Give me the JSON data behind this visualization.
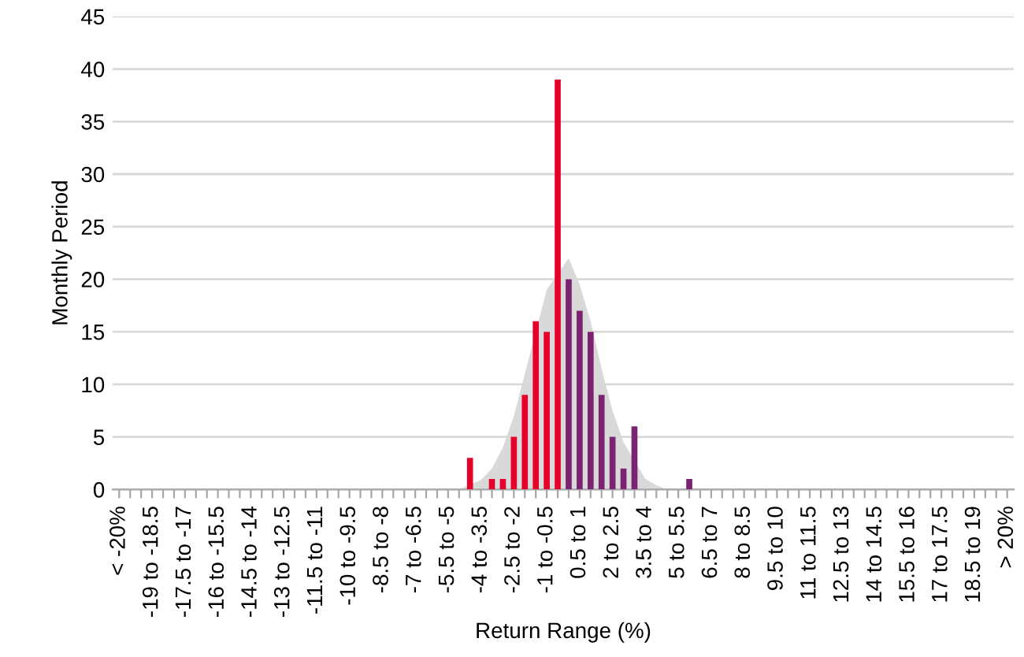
{
  "chart_data": {
    "type": "bar",
    "xlabel": "Return Range (%)",
    "ylabel": "Monthly Period",
    "categories": [
      "< -20%",
      null,
      null,
      "-19 to -18.5",
      null,
      null,
      "-17.5 to -17",
      null,
      null,
      "-16 to -15.5",
      null,
      null,
      "-14.5 to -14",
      null,
      null,
      "-13 to -12.5",
      null,
      null,
      "-11.5 to -11",
      null,
      null,
      "-10 to -9.5",
      null,
      null,
      "-8.5 to -8",
      null,
      null,
      "-7 to -6.5",
      null,
      null,
      "-5.5 to -5",
      null,
      null,
      "-4 to -3.5",
      null,
      null,
      "-2.5 to -2",
      null,
      null,
      "-1 to -0.5",
      null,
      null,
      "0.5 to 1",
      null,
      null,
      "2 to 2.5",
      null,
      null,
      "3.5 to 4",
      null,
      null,
      "5 to 5.5",
      null,
      null,
      "6.5 to 7",
      null,
      null,
      "8 to 8.5",
      null,
      null,
      "9.5 to 10",
      null,
      null,
      "11 to 11.5",
      null,
      null,
      "12.5 to 13",
      null,
      null,
      "14 to 14.5",
      null,
      null,
      "15.5 to 16",
      null,
      null,
      "17 to 17.5",
      null,
      null,
      "18.5 to 19",
      null,
      null,
      "> 20%"
    ],
    "series": [
      {
        "type": "area",
        "color": "#d9d9d9",
        "values": [
          0,
          0,
          0,
          0,
          0,
          0,
          0,
          0,
          0,
          0,
          0,
          0,
          0,
          0,
          0,
          0,
          0,
          0,
          0,
          0,
          0,
          0,
          0,
          0,
          0,
          0,
          0,
          0,
          0,
          0,
          0,
          0,
          null,
          0.9,
          2,
          4,
          7,
          11,
          null,
          19,
          null,
          22,
          19.5,
          16,
          11.5,
          7.5,
          4.5,
          null,
          1,
          0.4,
          0,
          0,
          0,
          0,
          0,
          0,
          0,
          0,
          0,
          0,
          0,
          0,
          0,
          0,
          0,
          0,
          0,
          0,
          0,
          0,
          0,
          0,
          0,
          0,
          0,
          0,
          0,
          0,
          0,
          0,
          0,
          0
        ]
      },
      {
        "color": "#e4002b",
        "values": [
          0,
          0,
          0,
          0,
          0,
          0,
          0,
          0,
          0,
          0,
          0,
          0,
          0,
          0,
          0,
          0,
          0,
          0,
          0,
          0,
          0,
          0,
          0,
          0,
          0,
          0,
          0,
          0,
          0,
          0,
          0,
          0,
          3,
          0,
          1,
          1,
          5,
          9,
          16,
          15,
          39,
          null,
          null,
          null,
          null,
          null,
          null,
          null,
          null,
          null,
          null,
          null,
          null,
          null,
          null,
          null,
          null,
          null,
          null,
          null,
          null,
          null,
          null,
          null,
          null,
          null,
          null,
          null,
          null,
          null,
          null,
          null,
          null,
          null,
          null,
          null,
          null,
          null,
          null,
          null,
          null,
          null
        ]
      },
      {
        "color": "#7b2270",
        "values": [
          null,
          null,
          null,
          null,
          null,
          null,
          null,
          null,
          null,
          null,
          null,
          null,
          null,
          null,
          null,
          null,
          null,
          null,
          null,
          null,
          null,
          null,
          null,
          null,
          null,
          null,
          null,
          null,
          null,
          null,
          null,
          null,
          null,
          null,
          null,
          null,
          null,
          null,
          null,
          null,
          null,
          20,
          17,
          15,
          9,
          5,
          2,
          6,
          0,
          0,
          0,
          0,
          1,
          0,
          0,
          0,
          0,
          0,
          0,
          0,
          0,
          0,
          0,
          0,
          0,
          0,
          0,
          0,
          0,
          0,
          0,
          0,
          0,
          0,
          0,
          0,
          0,
          0,
          0,
          0,
          0,
          0
        ]
      }
    ],
    "ylim": [
      0,
      45
    ],
    "yticks": [
      0,
      5,
      10,
      15,
      20,
      25,
      30,
      35,
      40,
      45
    ],
    "grid": "y"
  }
}
